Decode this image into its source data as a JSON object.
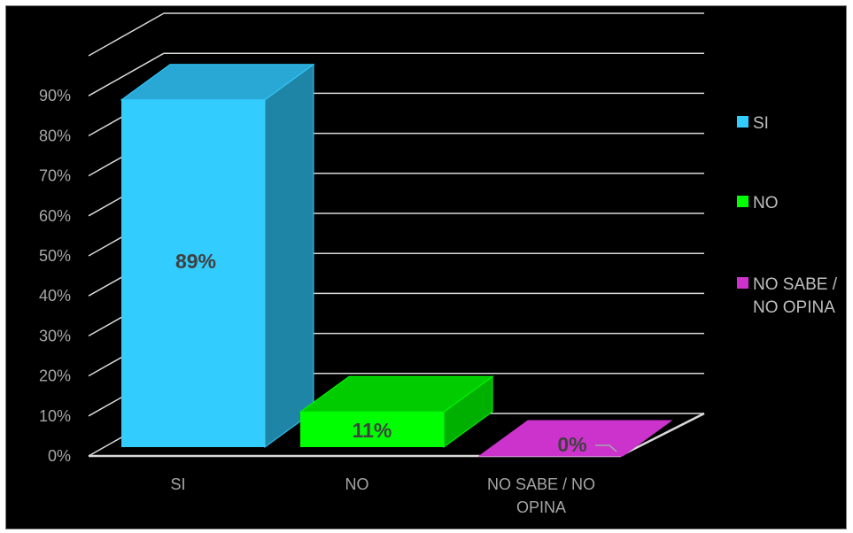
{
  "chart_data": {
    "type": "bar",
    "categories": [
      "SI",
      "NO",
      "NO SABE / NO OPINA"
    ],
    "category_labels": [
      [
        "SI"
      ],
      [
        "NO"
      ],
      [
        "NO SABE / NO",
        "OPINA"
      ]
    ],
    "series": [
      {
        "name": "SI",
        "values": [
          0.89,
          null,
          null
        ],
        "labels": [
          "89%",
          null,
          null
        ]
      },
      {
        "name": "NO",
        "values": [
          null,
          0.11,
          null
        ],
        "labels": [
          null,
          "11%",
          null
        ]
      },
      {
        "name": "NO SABE / NO OPINA",
        "values": [
          null,
          null,
          0.0
        ],
        "labels": [
          null,
          null,
          "0%"
        ]
      }
    ],
    "legend": [
      {
        "lines": [
          "SI"
        ]
      },
      {
        "lines": [
          "NO"
        ]
      },
      {
        "lines": [
          "NO SABE /",
          "NO OPINA"
        ]
      }
    ],
    "y_ticks": [
      "0%",
      "10%",
      "20%",
      "30%",
      "40%",
      "50%",
      "60%",
      "70%",
      "80%",
      "90%"
    ],
    "ylim": [
      0,
      1
    ],
    "grid": true,
    "legend_position": "right",
    "three_d": true,
    "colors": {
      "background": "#000000",
      "grid": "#d9d9d9",
      "SI": "#33ccff",
      "SI_side": "#1f85a6",
      "SI_top": "#29a8d6",
      "NO": "#00ff00",
      "NO_side": "#00b000",
      "NO_top": "#00cc00",
      "NO SABE / NO OPINA": "#cc33cc",
      "NO SABE / NO OPINA_top": "#cc33cc"
    }
  }
}
